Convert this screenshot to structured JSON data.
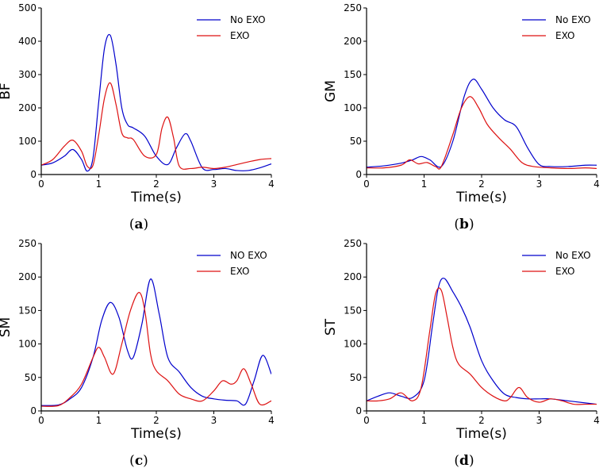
{
  "figure": {
    "panel_labels": [
      {
        "open": "(",
        "letter": "a",
        "close": ")"
      },
      {
        "open": "(",
        "letter": "b",
        "close": ")"
      },
      {
        "open": "(",
        "letter": "c",
        "close": ")"
      },
      {
        "open": "(",
        "letter": "d",
        "close": ")"
      }
    ]
  },
  "colors": {
    "no_exo": "#0000cc",
    "exo": "#dd1111"
  },
  "chart_data": [
    {
      "type": "line",
      "ylabel": "BF",
      "xlabel": "Time(s)",
      "xlim": [
        0,
        4
      ],
      "ylim": [
        0,
        500
      ],
      "xticks": [
        0,
        1,
        2,
        3,
        4
      ],
      "yticks": [
        0,
        100,
        200,
        300,
        400,
        500
      ],
      "xtick_labels": [
        "0",
        "1",
        "2",
        "3",
        "4"
      ],
      "ytick_labels": [
        "0",
        "100",
        "200",
        "300",
        "400",
        "500"
      ],
      "legend_position": "top-right",
      "series": [
        {
          "name": "No EXO",
          "color": "#0000cc",
          "x": [
            0,
            0.2,
            0.4,
            0.55,
            0.7,
            0.8,
            0.9,
            1.0,
            1.1,
            1.2,
            1.3,
            1.4,
            1.5,
            1.6,
            1.8,
            2.0,
            2.2,
            2.35,
            2.5,
            2.6,
            2.8,
            3.0,
            3.2,
            3.4,
            3.6,
            3.8,
            4.0
          ],
          "values": [
            28,
            35,
            55,
            75,
            45,
            10,
            50,
            220,
            380,
            418,
            330,
            200,
            150,
            140,
            115,
            55,
            30,
            80,
            122,
            100,
            20,
            15,
            18,
            12,
            12,
            20,
            32
          ]
        },
        {
          "name": "EXO",
          "color": "#dd1111",
          "x": [
            0,
            0.2,
            0.4,
            0.55,
            0.7,
            0.8,
            0.9,
            1.0,
            1.1,
            1.2,
            1.3,
            1.4,
            1.5,
            1.6,
            1.8,
            2.0,
            2.1,
            2.2,
            2.3,
            2.4,
            2.6,
            2.8,
            3.0,
            3.2,
            3.4,
            3.6,
            3.8,
            4.0
          ],
          "values": [
            28,
            45,
            85,
            103,
            70,
            25,
            28,
            120,
            230,
            275,
            210,
            125,
            110,
            105,
            55,
            60,
            140,
            172,
            110,
            25,
            18,
            22,
            18,
            22,
            30,
            38,
            45,
            48
          ]
        }
      ]
    },
    {
      "type": "line",
      "ylabel": "GM",
      "xlabel": "Time(s)",
      "xlim": [
        0,
        4
      ],
      "ylim": [
        0,
        250
      ],
      "xticks": [
        0,
        1,
        2,
        3,
        4
      ],
      "yticks": [
        0,
        50,
        100,
        150,
        200,
        250
      ],
      "xtick_labels": [
        "0",
        "1",
        "2",
        "3",
        "4"
      ],
      "ytick_labels": [
        "0",
        "50",
        "100",
        "150",
        "200",
        "250"
      ],
      "legend_position": "top-right",
      "series": [
        {
          "name": "No EXO",
          "color": "#0000cc",
          "x": [
            0,
            0.3,
            0.6,
            0.8,
            0.95,
            1.1,
            1.3,
            1.5,
            1.7,
            1.85,
            2.0,
            2.2,
            2.4,
            2.6,
            2.8,
            3.0,
            3.2,
            3.5,
            3.8,
            4.0
          ],
          "values": [
            11,
            13,
            17,
            22,
            27,
            22,
            12,
            50,
            118,
            143,
            128,
            100,
            82,
            72,
            40,
            15,
            12,
            12,
            14,
            14
          ]
        },
        {
          "name": "EXO",
          "color": "#dd1111",
          "x": [
            0,
            0.3,
            0.6,
            0.75,
            0.9,
            1.05,
            1.2,
            1.3,
            1.5,
            1.65,
            1.8,
            1.95,
            2.1,
            2.3,
            2.5,
            2.7,
            2.9,
            3.2,
            3.5,
            3.8,
            4.0
          ],
          "values": [
            10,
            10,
            14,
            22,
            16,
            18,
            12,
            12,
            60,
            100,
            117,
            100,
            75,
            55,
            38,
            18,
            12,
            10,
            9,
            10,
            9
          ]
        }
      ]
    },
    {
      "type": "line",
      "ylabel": "SM",
      "xlabel": "Time(s)",
      "xlim": [
        0,
        4
      ],
      "ylim": [
        0,
        250
      ],
      "xticks": [
        0,
        1,
        2,
        3,
        4
      ],
      "yticks": [
        0,
        50,
        100,
        150,
        200,
        250
      ],
      "xtick_labels": [
        "0",
        "1",
        "2",
        "3",
        "4"
      ],
      "ytick_labels": [
        "0",
        "50",
        "100",
        "150",
        "200",
        "250"
      ],
      "legend_position": "top-right",
      "series": [
        {
          "name": "NO EXO",
          "color": "#0000cc",
          "x": [
            0,
            0.3,
            0.5,
            0.7,
            0.9,
            1.05,
            1.2,
            1.35,
            1.5,
            1.6,
            1.75,
            1.9,
            2.05,
            2.2,
            2.4,
            2.6,
            2.8,
            3.0,
            3.2,
            3.4,
            3.55,
            3.7,
            3.85,
            4.0
          ],
          "values": [
            8,
            9,
            18,
            35,
            80,
            135,
            162,
            140,
            90,
            80,
            130,
            197,
            145,
            80,
            58,
            35,
            22,
            18,
            16,
            15,
            10,
            45,
            83,
            55
          ]
        },
        {
          "name": "EXO",
          "color": "#dd1111",
          "x": [
            0,
            0.3,
            0.5,
            0.7,
            0.9,
            1.0,
            1.1,
            1.25,
            1.4,
            1.55,
            1.7,
            1.8,
            1.9,
            2.0,
            2.2,
            2.4,
            2.6,
            2.8,
            3.0,
            3.15,
            3.3,
            3.4,
            3.52,
            3.65,
            3.8,
            4.0
          ],
          "values": [
            7,
            8,
            20,
            40,
            80,
            95,
            80,
            55,
            100,
            150,
            177,
            150,
            85,
            60,
            45,
            25,
            18,
            15,
            30,
            45,
            40,
            45,
            63,
            40,
            10,
            15
          ]
        }
      ]
    },
    {
      "type": "line",
      "ylabel": "ST",
      "xlabel": "Time(s)",
      "xlim": [
        0,
        4
      ],
      "ylim": [
        0,
        250
      ],
      "xticks": [
        0,
        1,
        2,
        3,
        4
      ],
      "yticks": [
        0,
        50,
        100,
        150,
        200,
        250
      ],
      "xtick_labels": [
        "0",
        "1",
        "2",
        "3",
        "4"
      ],
      "ytick_labels": [
        "0",
        "50",
        "100",
        "150",
        "200",
        "250"
      ],
      "legend_position": "top-right",
      "series": [
        {
          "name": "No EXO",
          "color": "#0000cc",
          "x": [
            0,
            0.2,
            0.4,
            0.6,
            0.8,
            1.0,
            1.15,
            1.25,
            1.35,
            1.5,
            1.65,
            1.8,
            2.0,
            2.2,
            2.4,
            2.6,
            2.8,
            3.0,
            3.2,
            3.5,
            3.8,
            4.0
          ],
          "values": [
            15,
            22,
            27,
            22,
            20,
            45,
            130,
            185,
            198,
            178,
            155,
            125,
            75,
            45,
            25,
            20,
            18,
            18,
            18,
            15,
            12,
            10
          ]
        },
        {
          "name": "EXO",
          "color": "#dd1111",
          "x": [
            0,
            0.2,
            0.4,
            0.6,
            0.8,
            0.95,
            1.1,
            1.2,
            1.3,
            1.4,
            1.5,
            1.6,
            1.8,
            2.0,
            2.2,
            2.4,
            2.5,
            2.65,
            2.8,
            3.0,
            3.2,
            3.4,
            3.6,
            3.8,
            4.0
          ],
          "values": [
            15,
            15,
            18,
            27,
            15,
            35,
            120,
            175,
            180,
            140,
            95,
            70,
            55,
            35,
            22,
            15,
            20,
            35,
            20,
            13,
            18,
            15,
            10,
            10,
            10
          ]
        }
      ]
    }
  ]
}
